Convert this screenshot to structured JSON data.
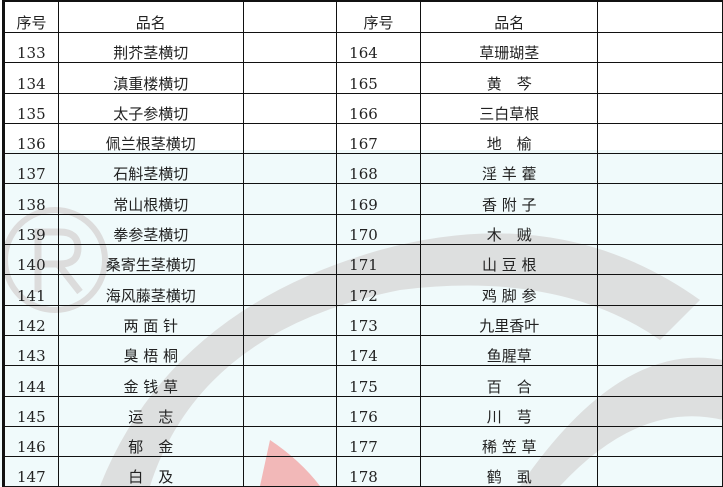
{
  "headers": {
    "no": "序号",
    "name": "品名"
  },
  "left_rows": [
    {
      "no": "133",
      "name": "荆芥茎横切"
    },
    {
      "no": "134",
      "name": "滇重楼横切"
    },
    {
      "no": "135",
      "name": "太子参横切"
    },
    {
      "no": "136",
      "name": "佩兰根茎横切"
    },
    {
      "no": "137",
      "name": "石斛茎横切"
    },
    {
      "no": "138",
      "name": "常山根横切"
    },
    {
      "no": "139",
      "name": "拳参茎横切"
    },
    {
      "no": "140",
      "name": "桑寄生茎横切"
    },
    {
      "no": "141",
      "name": "海风藤茎横切"
    },
    {
      "no": "142",
      "name": "两 面 针"
    },
    {
      "no": "143",
      "name": "臭 梧 桐"
    },
    {
      "no": "144",
      "name": "金 钱 草"
    },
    {
      "no": "145",
      "name": "运　志"
    },
    {
      "no": "146",
      "name": "郁　金"
    },
    {
      "no": "147",
      "name": "白　及"
    }
  ],
  "right_rows": [
    {
      "no": "164",
      "name": "草珊瑚茎"
    },
    {
      "no": "165",
      "name": "黄　芩"
    },
    {
      "no": "166",
      "name": "三白草根"
    },
    {
      "no": "167",
      "name": "地　榆"
    },
    {
      "no": "168",
      "name": "淫 羊 藿"
    },
    {
      "no": "169",
      "name": "香 附 子"
    },
    {
      "no": "170",
      "name": "木　贼"
    },
    {
      "no": "171",
      "name": "山 豆 根"
    },
    {
      "no": "172",
      "name": "鸡 脚 参"
    },
    {
      "no": "173",
      "name": "九里香叶"
    },
    {
      "no": "174",
      "name": "鱼腥草"
    },
    {
      "no": "175",
      "name": "百　合"
    },
    {
      "no": "176",
      "name": "川　芎"
    },
    {
      "no": "177",
      "name": "稀 笠 草"
    },
    {
      "no": "178",
      "name": "鹤　虱"
    }
  ],
  "watermark": {
    "colors": {
      "gray": "#d8d8d8",
      "red": "#f2b8b8",
      "tint": "#f0fafb"
    }
  }
}
